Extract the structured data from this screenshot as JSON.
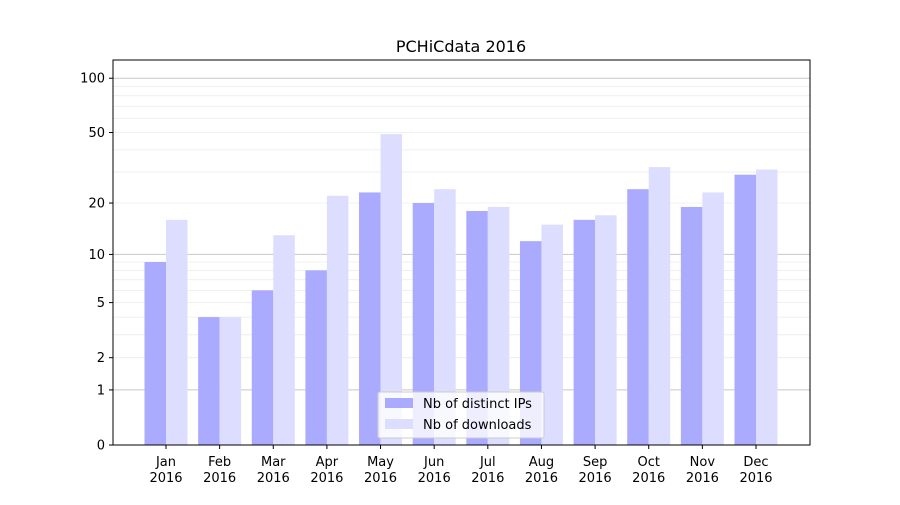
{
  "chart_data": {
    "type": "bar",
    "title": "PCHiCdata 2016",
    "xlabel": "",
    "ylabel": "",
    "yscale": "symlog",
    "ylim": [
      0,
      120
    ],
    "yticks": [
      0,
      1,
      2,
      5,
      10,
      20,
      50,
      100
    ],
    "ytick_labels": [
      "0",
      "1",
      "2",
      "5",
      "10",
      "20",
      "50",
      "100"
    ],
    "grid": true,
    "legend_position": "bottom-center",
    "categories": [
      "Jan\n2016",
      "Feb\n2016",
      "Mar\n2016",
      "Apr\n2016",
      "May\n2016",
      "Jun\n2016",
      "Jul\n2016",
      "Aug\n2016",
      "Sep\n2016",
      "Oct\n2016",
      "Nov\n2016",
      "Dec\n2016"
    ],
    "category_months": [
      "Jan",
      "Feb",
      "Mar",
      "Apr",
      "May",
      "Jun",
      "Jul",
      "Aug",
      "Sep",
      "Oct",
      "Nov",
      "Dec"
    ],
    "category_year": "2016",
    "series": [
      {
        "name": "Nb of distinct IPs",
        "color": "#aaaaff",
        "values": [
          9,
          4,
          6,
          8,
          23,
          20,
          18,
          12,
          16,
          24,
          19,
          29
        ]
      },
      {
        "name": "Nb of downloads",
        "color": "#ddddff",
        "values": [
          16,
          4,
          13,
          22,
          49,
          24,
          19,
          15,
          17,
          32,
          23,
          31
        ]
      }
    ]
  }
}
